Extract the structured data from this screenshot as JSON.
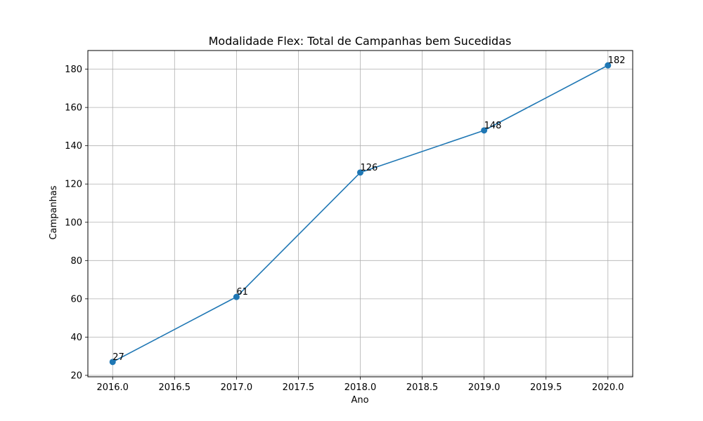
{
  "chart_data": {
    "type": "line",
    "title": "Modalidade Flex: Total de Campanhas bem Sucedidas",
    "xlabel": "Ano",
    "ylabel": "Campanhas",
    "x": [
      2016,
      2017,
      2018,
      2019,
      2020
    ],
    "series": [
      {
        "values": [
          27,
          61,
          126,
          148,
          182
        ],
        "color": "#1f77b4"
      }
    ],
    "data_labels": [
      "27",
      "61",
      "126",
      "148",
      "182"
    ],
    "xlim": [
      2015.8,
      2020.2
    ],
    "ylim": [
      19.25,
      189.75
    ],
    "xticks": [
      2016.0,
      2016.5,
      2017.0,
      2017.5,
      2018.0,
      2018.5,
      2019.0,
      2019.5,
      2020.0
    ],
    "xtick_labels": [
      "2016.0",
      "2016.5",
      "2017.0",
      "2017.5",
      "2018.0",
      "2018.5",
      "2019.0",
      "2019.5",
      "2020.0"
    ],
    "yticks": [
      20,
      40,
      60,
      80,
      100,
      120,
      140,
      160,
      180
    ],
    "ytick_labels": [
      "20",
      "40",
      "60",
      "80",
      "100",
      "120",
      "140",
      "160",
      "180"
    ],
    "grid": true,
    "legend": "none"
  }
}
